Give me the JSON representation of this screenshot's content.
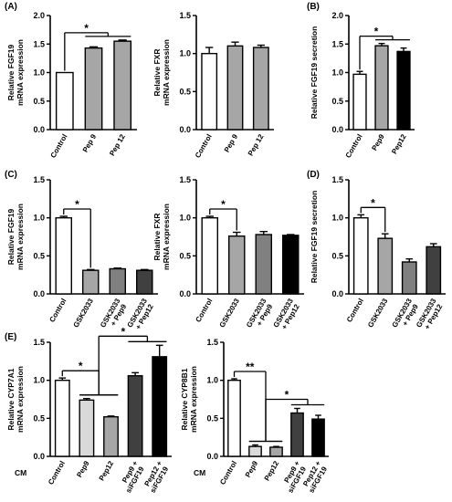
{
  "panels": [
    {
      "label": "(A)"
    },
    {
      "label": "(B)"
    },
    {
      "label": "(C)"
    },
    {
      "label": "(D)"
    },
    {
      "label": "(E)"
    }
  ],
  "cm_label": "CM",
  "colors": {
    "white": "#ffffff",
    "light_gray": "#d9d9d9",
    "gray": "#a6a6a6",
    "mid_gray": "#808080",
    "dark_gray": "#404040",
    "black": "#000000"
  },
  "chart_data": [
    {
      "type": "bar",
      "panel": "(A)",
      "ylabel": [
        "Relative FGF19",
        "mRNA expression"
      ],
      "categories": [
        "Control",
        "Pep 9",
        "Pep 12"
      ],
      "values": [
        1.0,
        1.43,
        1.55
      ],
      "errors": [
        0.0,
        0.02,
        0.02
      ],
      "fills": [
        "white",
        "gray",
        "gray"
      ],
      "ylim": [
        0,
        2.0
      ],
      "yticks": [
        "0.0",
        "0.5",
        "1.0",
        "1.5",
        "2.0"
      ],
      "grid": false,
      "significance": [
        {
          "label": "*",
          "from": 0,
          "to": [
            1,
            2
          ]
        }
      ]
    },
    {
      "type": "bar",
      "ylabel": [
        "Relative FXR",
        "mRNA expression"
      ],
      "categories": [
        "Control",
        "Pep 9",
        "Pep 12"
      ],
      "values": [
        1.0,
        1.1,
        1.08
      ],
      "errors": [
        0.08,
        0.05,
        0.03
      ],
      "fills": [
        "white",
        "gray",
        "gray"
      ],
      "ylim": [
        0,
        1.5
      ],
      "yticks": [
        "0.0",
        "0.5",
        "1.0",
        "1.5"
      ],
      "grid": false,
      "significance": []
    },
    {
      "type": "bar",
      "panel": "(B)",
      "ylabel": [
        "Relative FGF19 secretion"
      ],
      "categories": [
        "Control",
        "Pep9",
        "Pep12"
      ],
      "values": [
        0.97,
        1.47,
        1.37
      ],
      "errors": [
        0.05,
        0.04,
        0.06
      ],
      "fills": [
        "white",
        "gray",
        "black"
      ],
      "ylim": [
        0,
        2.0
      ],
      "yticks": [
        "0.0",
        "0.5",
        "1.0",
        "1.5",
        "2.0"
      ],
      "grid": false,
      "significance": [
        {
          "label": "*",
          "from": 0,
          "to": [
            1,
            2
          ]
        }
      ]
    },
    {
      "type": "bar",
      "panel": "(C)",
      "ylabel": [
        "Relative FGF19",
        "mRNA expression"
      ],
      "categories": [
        "Control",
        "GSK2033",
        "GSK2033\n+ Pep9",
        "GSK2033\n+ Pep12"
      ],
      "values": [
        1.0,
        0.31,
        0.33,
        0.31
      ],
      "errors": [
        0.02,
        0.01,
        0.01,
        0.01
      ],
      "fills": [
        "white",
        "gray",
        "mid_gray",
        "dark_gray"
      ],
      "ylim": [
        0,
        1.5
      ],
      "yticks": [
        "0.0",
        "0.5",
        "1.0",
        "1.5"
      ],
      "grid": false,
      "significance": [
        {
          "label": "*",
          "from": 0,
          "to": [
            1
          ]
        }
      ]
    },
    {
      "type": "bar",
      "ylabel": [
        "Relative FXR",
        "mRNA expression"
      ],
      "categories": [
        "Control",
        "GSK2033",
        "GSK2033\n+ Pep9",
        "GSK2033\n+ Pep12"
      ],
      "values": [
        1.0,
        0.76,
        0.78,
        0.77
      ],
      "errors": [
        0.02,
        0.05,
        0.04,
        0.01
      ],
      "fills": [
        "white",
        "gray",
        "mid_gray",
        "black"
      ],
      "ylim": [
        0,
        1.5
      ],
      "yticks": [
        "0.0",
        "0.5",
        "1.0",
        "1.5"
      ],
      "grid": false,
      "significance": [
        {
          "label": "*",
          "from": 0,
          "to": [
            1
          ]
        }
      ]
    },
    {
      "type": "bar",
      "panel": "(D)",
      "ylabel": [
        "Relative FGF19 secretion"
      ],
      "categories": [
        "Control",
        "GSK2033",
        "GSK2033\n+ Pep9",
        "GSK2033\n+ Pep12"
      ],
      "values": [
        1.0,
        0.73,
        0.42,
        0.62
      ],
      "errors": [
        0.04,
        0.06,
        0.04,
        0.04
      ],
      "fills": [
        "white",
        "gray",
        "mid_gray",
        "dark_gray"
      ],
      "ylim": [
        0,
        1.5
      ],
      "yticks": [
        "0.0",
        "0.5",
        "1.0",
        "1.5"
      ],
      "grid": false,
      "significance": [
        {
          "label": "*",
          "from": 0,
          "to": [
            1
          ]
        }
      ]
    },
    {
      "type": "bar",
      "panel": "(E)",
      "ylabel": [
        "Relative CYP7A1",
        "mRNA expression"
      ],
      "categories": [
        "Control",
        "Pep9",
        "Pep12",
        "Pep9 +\nsiFGF19",
        "Pep12 +\nsiFGF19"
      ],
      "values": [
        1.0,
        0.74,
        0.52,
        1.06,
        1.31
      ],
      "errors": [
        0.03,
        0.02,
        0.01,
        0.04,
        0.15
      ],
      "fills": [
        "white",
        "light_gray",
        "gray",
        "dark_gray",
        "black"
      ],
      "ylim": [
        0,
        1.5
      ],
      "yticks": [
        "0.0",
        "0.5",
        "1.0",
        "1.5"
      ],
      "grid": false,
      "significance": [
        {
          "label": "*",
          "from": 0,
          "to": [
            1,
            2
          ]
        },
        {
          "label": "*",
          "from": [
            1,
            2
          ],
          "to": [
            3,
            4
          ]
        }
      ]
    },
    {
      "type": "bar",
      "ylabel": [
        "Relative CYP8B1",
        "mRNA expression"
      ],
      "categories": [
        "Control",
        "Pep9",
        "Pep12",
        "Pep9 +\nsiFGF19",
        "Pep12 +\nsiFGF19"
      ],
      "values": [
        1.0,
        0.13,
        0.12,
        0.57,
        0.49
      ],
      "errors": [
        0.02,
        0.02,
        0.01,
        0.06,
        0.05
      ],
      "fills": [
        "white",
        "light_gray",
        "gray",
        "dark_gray",
        "black"
      ],
      "ylim": [
        0,
        1.5
      ],
      "yticks": [
        "0.0",
        "0.5",
        "1.0",
        "1.5"
      ],
      "grid": false,
      "significance": [
        {
          "label": "**",
          "from": 0,
          "to": [
            1,
            2
          ]
        },
        {
          "label": "*",
          "from": [
            1,
            2
          ],
          "to": [
            3,
            4
          ]
        }
      ]
    }
  ]
}
